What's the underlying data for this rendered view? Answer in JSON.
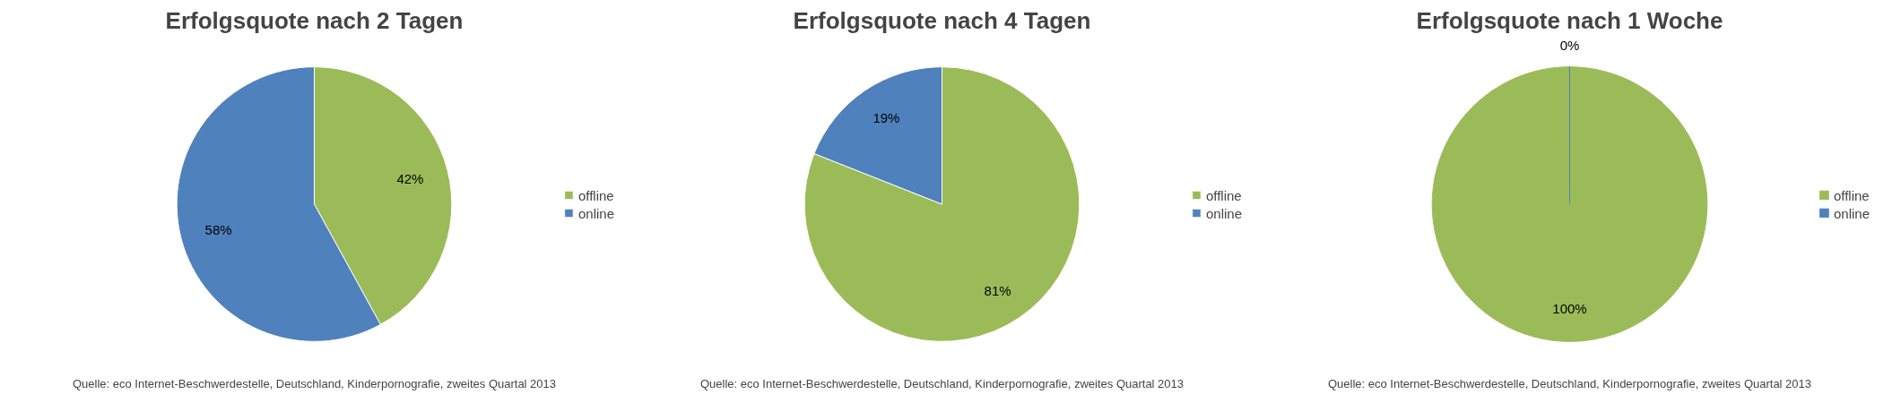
{
  "chart_data": [
    {
      "type": "pie",
      "title": "Erfolgsquote nach 2 Tagen",
      "categories": [
        "offline",
        "online"
      ],
      "values": [
        42,
        58
      ],
      "colors": [
        "#9bbb59",
        "#4f81bd"
      ],
      "value_labels": [
        "42%",
        "58%"
      ],
      "legend": "right",
      "annotations": [
        "Quelle: eco Internet-Beschwerdestelle, Deutschland, Kinderpornografie, zweites Quartal 2013"
      ]
    },
    {
      "type": "pie",
      "title": "Erfolgsquote nach 4 Tagen",
      "categories": [
        "offline",
        "online"
      ],
      "values": [
        81,
        19
      ],
      "colors": [
        "#9bbb59",
        "#4f81bd"
      ],
      "value_labels": [
        "81%",
        "19%"
      ],
      "legend": "right",
      "annotations": [
        "Quelle: eco Internet-Beschwerdestelle, Deutschland, Kinderpornografie, zweites Quartal 2013"
      ]
    },
    {
      "type": "pie",
      "title": "Erfolgsquote nach 1 Woche",
      "categories": [
        "offline",
        "online"
      ],
      "values": [
        100,
        0
      ],
      "colors": [
        "#9bbb59",
        "#4f81bd"
      ],
      "value_labels": [
        "100%",
        "0%"
      ],
      "legend": "right",
      "annotations": [
        "Quelle: eco Internet-Beschwerdestelle, Deutschland, Kinderpornografie, zweites Quartal 2013"
      ]
    }
  ]
}
